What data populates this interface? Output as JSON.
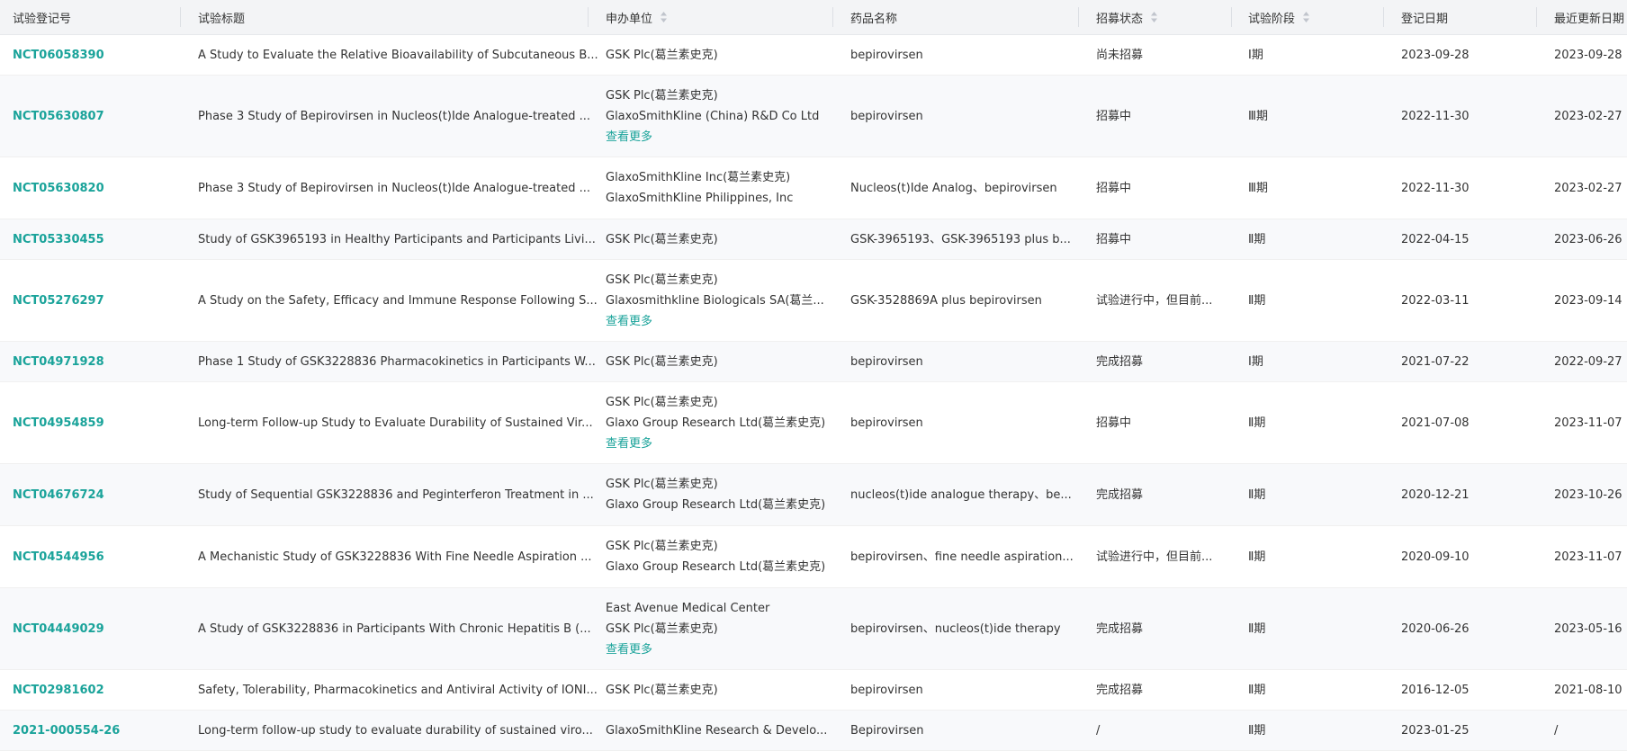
{
  "table": {
    "header": [
      "试验登记号",
      "试验标题",
      "申办单位",
      "药品名称",
      "招募状态",
      "试验阶段",
      "登记日期",
      "最近更新日期"
    ],
    "sortable": [
      false,
      false,
      true,
      false,
      true,
      true,
      false,
      false
    ],
    "rows": [
      {
        "id": "NCT06058390",
        "title": "A Study to Evaluate the Relative Bioavailability of Subcutaneous B...",
        "sponsors": [
          "GSK Plc(葛兰素史克)"
        ],
        "drug": "bepirovirsen",
        "status": "尚未招募",
        "phase": "Ⅰ期",
        "reg_date": "2023-09-28",
        "update_date": "2023-09-28"
      },
      {
        "id": "NCT05630807",
        "title": "Phase 3 Study of Bepirovirsen in Nucleos(t)Ide Analogue-treated ...",
        "sponsors": [
          "GSK Plc(葛兰素史克)",
          "GlaxoSmithKline (China) R&D Co Ltd"
        ],
        "more": "查看更多",
        "drug": "bepirovirsen",
        "status": "招募中",
        "phase": "Ⅲ期",
        "reg_date": "2022-11-30",
        "update_date": "2023-02-27"
      },
      {
        "id": "NCT05630820",
        "title": "Phase 3 Study of Bepirovirsen in Nucleos(t)Ide Analogue-treated ...",
        "sponsors": [
          "GlaxoSmithKline Inc(葛兰素史克)",
          "GlaxoSmithKline Philippines, Inc"
        ],
        "drug": "Nucleos(t)Ide Analog、bepirovirsen",
        "status": "招募中",
        "phase": "Ⅲ期",
        "reg_date": "2022-11-30",
        "update_date": "2023-02-27"
      },
      {
        "id": "NCT05330455",
        "title": "Study of GSK3965193 in Healthy Participants and Participants Livi...",
        "sponsors": [
          "GSK Plc(葛兰素史克)"
        ],
        "drug": "GSK-3965193、GSK-3965193 plus b...",
        "status": "招募中",
        "phase": "Ⅱ期",
        "reg_date": "2022-04-15",
        "update_date": "2023-06-26"
      },
      {
        "id": "NCT05276297",
        "title": "A Study on the Safety, Efficacy and Immune Response Following S...",
        "sponsors": [
          "GSK Plc(葛兰素史克)",
          "Glaxosmithkline Biologicals SA(葛兰..."
        ],
        "more": "查看更多",
        "drug": "GSK-3528869A plus bepirovirsen",
        "status": "试验进行中，但目前...",
        "phase": "Ⅱ期",
        "reg_date": "2022-03-11",
        "update_date": "2023-09-14"
      },
      {
        "id": "NCT04971928",
        "title": "Phase 1 Study of GSK3228836 Pharmacokinetics in Participants W...",
        "sponsors": [
          "GSK Plc(葛兰素史克)"
        ],
        "drug": "bepirovirsen",
        "status": "完成招募",
        "phase": "Ⅰ期",
        "reg_date": "2021-07-22",
        "update_date": "2022-09-27"
      },
      {
        "id": "NCT04954859",
        "title": "Long-term Follow-up Study to Evaluate Durability of Sustained Vir...",
        "sponsors": [
          "GSK Plc(葛兰素史克)",
          "Glaxo Group Research Ltd(葛兰素史克)"
        ],
        "more": "查看更多",
        "drug": "bepirovirsen",
        "status": "招募中",
        "phase": "Ⅱ期",
        "reg_date": "2021-07-08",
        "update_date": "2023-11-07"
      },
      {
        "id": "NCT04676724",
        "title": "Study of Sequential GSK3228836 and Peginterferon Treatment in ...",
        "sponsors": [
          "GSK Plc(葛兰素史克)",
          "Glaxo Group Research Ltd(葛兰素史克)"
        ],
        "drug": "nucleos(t)ide analogue therapy、be...",
        "status": "完成招募",
        "phase": "Ⅱ期",
        "reg_date": "2020-12-21",
        "update_date": "2023-10-26"
      },
      {
        "id": "NCT04544956",
        "title": "A Mechanistic Study of GSK3228836 With Fine Needle Aspiration ...",
        "sponsors": [
          "GSK Plc(葛兰素史克)",
          "Glaxo Group Research Ltd(葛兰素史克)"
        ],
        "drug": "bepirovirsen、fine needle aspiration...",
        "status": "试验进行中，但目前...",
        "phase": "Ⅱ期",
        "reg_date": "2020-09-10",
        "update_date": "2023-11-07"
      },
      {
        "id": "NCT04449029",
        "title": "A Study of GSK3228836 in Participants With Chronic Hepatitis B (...",
        "sponsors": [
          "East Avenue Medical Center",
          "GSK Plc(葛兰素史克)"
        ],
        "more": "查看更多",
        "drug": "bepirovirsen、nucleos(t)ide therapy",
        "status": "完成招募",
        "phase": "Ⅱ期",
        "reg_date": "2020-06-26",
        "update_date": "2023-05-16"
      },
      {
        "id": "NCT02981602",
        "title": "Safety, Tolerability, Pharmacokinetics and Antiviral Activity of IONI...",
        "sponsors": [
          "GSK Plc(葛兰素史克)"
        ],
        "drug": "bepirovirsen",
        "status": "完成招募",
        "phase": "Ⅱ期",
        "reg_date": "2016-12-05",
        "update_date": "2021-08-10"
      },
      {
        "id": "2021-000554-26",
        "title": "Long-term follow-up study to evaluate durability of sustained viro...",
        "sponsors": [
          "GlaxoSmithKline Research & Develo..."
        ],
        "drug": "Bepirovirsen",
        "status": "/",
        "phase": "Ⅱ期",
        "reg_date": "2023-01-25",
        "update_date": "/"
      }
    ]
  }
}
